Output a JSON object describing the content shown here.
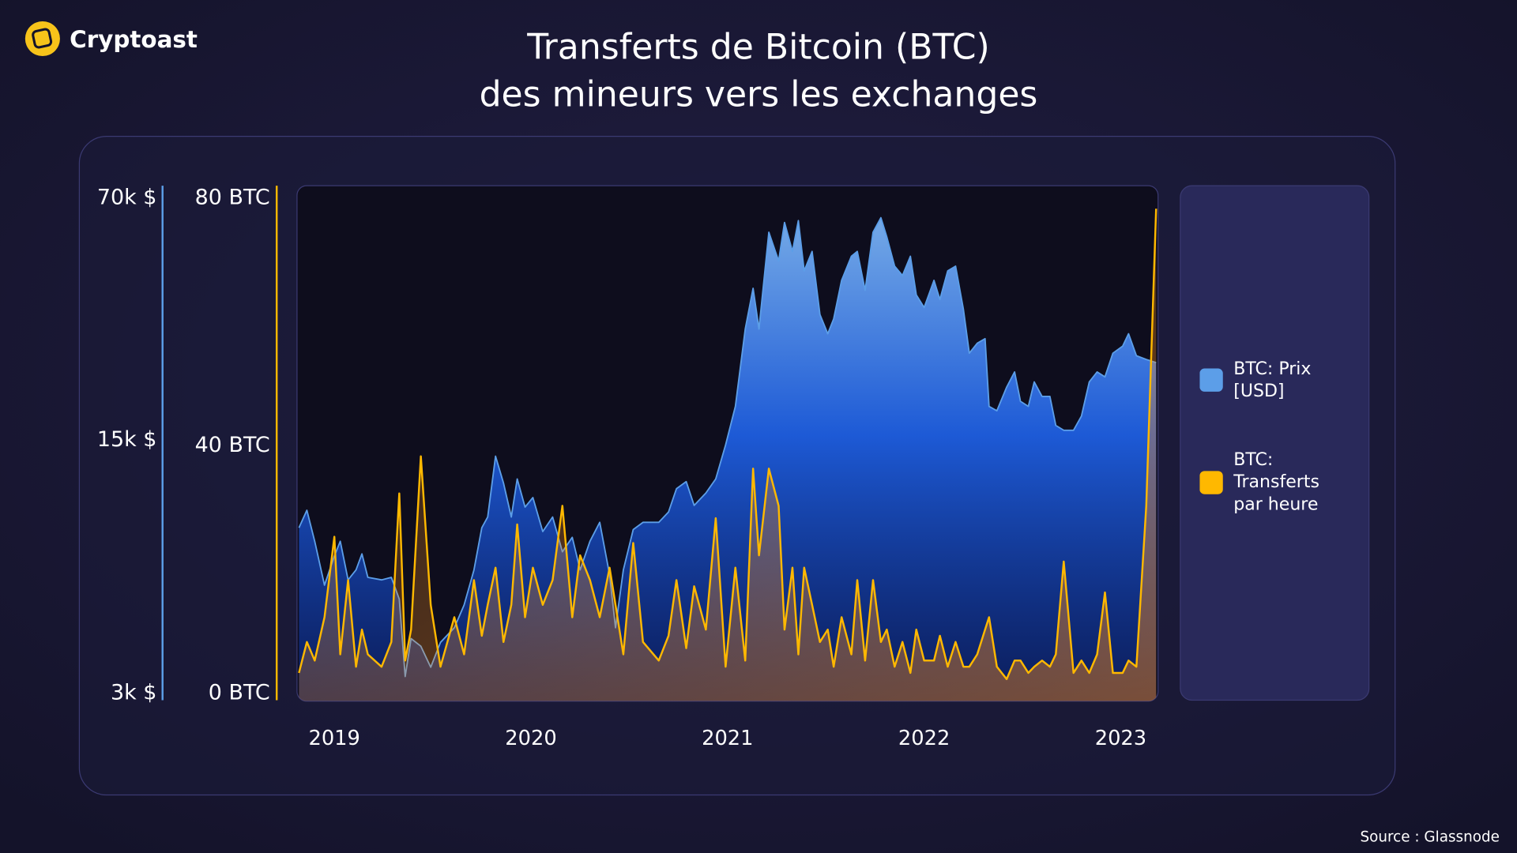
{
  "brand": "Cryptoast",
  "source": "Source : Glassnode",
  "chart_data": {
    "type": "line",
    "title": [
      "Transferts de Bitcoin (BTC)",
      "des mineurs vers les exchanges"
    ],
    "x": [
      2018.82,
      2018.86,
      2018.9,
      2018.95,
      2019.0,
      2019.03,
      2019.07,
      2019.11,
      2019.14,
      2019.17,
      2019.24,
      2019.29,
      2019.33,
      2019.36,
      2019.39,
      2019.44,
      2019.49,
      2019.54,
      2019.61,
      2019.66,
      2019.71,
      2019.75,
      2019.78,
      2019.82,
      2019.86,
      2019.9,
      2019.93,
      2019.97,
      2020.01,
      2020.06,
      2020.11,
      2020.16,
      2020.21,
      2020.25,
      2020.3,
      2020.35,
      2020.4,
      2020.43,
      2020.47,
      2020.52,
      2020.57,
      2020.65,
      2020.7,
      2020.74,
      2020.79,
      2020.83,
      2020.89,
      2020.94,
      2020.99,
      2021.04,
      2021.09,
      2021.13,
      2021.16,
      2021.21,
      2021.26,
      2021.29,
      2021.33,
      2021.36,
      2021.39,
      2021.43,
      2021.47,
      2021.51,
      2021.54,
      2021.58,
      2021.63,
      2021.66,
      2021.7,
      2021.74,
      2021.78,
      2021.81,
      2021.85,
      2021.89,
      2021.93,
      2021.96,
      2022.0,
      2022.05,
      2022.08,
      2022.12,
      2022.16,
      2022.2,
      2022.23,
      2022.27,
      2022.31,
      2022.33,
      2022.37,
      2022.42,
      2022.46,
      2022.49,
      2022.53,
      2022.56,
      2022.6,
      2022.64,
      2022.67,
      2022.71,
      2022.76,
      2022.8,
      2022.84,
      2022.88,
      2022.92,
      2022.96,
      2023.01,
      2023.04,
      2023.08,
      2023.13,
      2023.18
    ],
    "xlim": [
      2018.81,
      2023.19
    ],
    "xticks": [
      2019,
      2020,
      2021,
      2022,
      2023
    ],
    "yscale": "log",
    "ylim": [
      3000,
      70000
    ],
    "yticks": [
      {
        "value": 3000,
        "label": "3k $"
      },
      {
        "value": 15000,
        "label": "15k $"
      },
      {
        "value": 70000,
        "label": "70k $"
      }
    ],
    "y2lim": [
      0,
      80
    ],
    "y2ticks": [
      {
        "value": 0,
        "label": "0 BTC"
      },
      {
        "value": 40,
        "label": "40 BTC"
      },
      {
        "value": 80,
        "label": "80 BTC"
      }
    ],
    "series": [
      {
        "name": "BTC: Prix [USD]",
        "color": "#5c9ee8",
        "values": [
          8500,
          9500,
          7800,
          5900,
          7100,
          7800,
          6100,
          6500,
          7200,
          6200,
          6100,
          6200,
          5400,
          3300,
          4200,
          4000,
          3500,
          4100,
          4500,
          5200,
          6500,
          8500,
          9100,
          13400,
          11300,
          9100,
          11600,
          9700,
          10300,
          8300,
          9100,
          7300,
          8000,
          6500,
          7800,
          8800,
          6300,
          4500,
          6500,
          8400,
          8800,
          8800,
          9400,
          10900,
          11400,
          9800,
          10600,
          11600,
          14400,
          18400,
          30100,
          39000,
          30100,
          55700,
          46400,
          59300,
          49300,
          60000,
          43600,
          49300,
          33000,
          29200,
          32100,
          41000,
          47800,
          49300,
          38500,
          55700,
          61100,
          54100,
          44900,
          42300,
          47800,
          37400,
          34500,
          41000,
          36300,
          43600,
          44900,
          34100,
          25800,
          27500,
          28300,
          18400,
          17900,
          20800,
          22900,
          19000,
          18400,
          21500,
          19600,
          19600,
          16300,
          15800,
          15800,
          17300,
          21500,
          22900,
          22200,
          25800,
          27000,
          29200,
          25400,
          24800,
          24300
        ]
      },
      {
        "name": "BTC: Transferts par heure",
        "color": "#ffb800",
        "axis": "y2",
        "values": [
          3,
          8,
          5,
          12,
          25,
          6,
          18,
          4,
          10,
          6,
          4,
          8,
          32,
          5,
          10,
          38,
          14,
          4,
          12,
          6,
          18,
          9,
          14,
          20,
          8,
          14,
          27,
          12,
          20,
          14,
          18,
          30,
          12,
          22,
          18,
          12,
          20,
          14,
          6,
          24,
          8,
          5,
          9,
          18,
          7,
          17,
          10,
          28,
          4,
          20,
          5,
          36,
          22,
          36,
          30,
          10,
          20,
          6,
          20,
          14,
          8,
          10,
          4,
          12,
          6,
          18,
          5,
          18,
          8,
          10,
          4,
          8,
          3,
          10,
          5,
          5,
          9,
          4,
          8,
          4,
          4,
          6,
          10,
          12,
          4,
          2,
          5,
          5,
          3,
          4,
          5,
          4,
          6,
          21,
          3,
          5,
          3,
          6,
          16,
          3,
          3,
          5,
          4,
          30,
          78
        ]
      }
    ]
  }
}
